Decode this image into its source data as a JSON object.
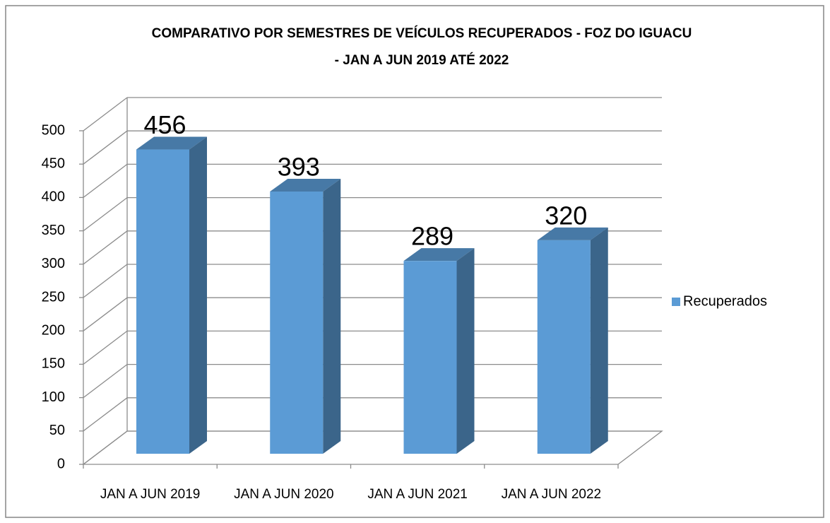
{
  "chart_data": {
    "type": "bar",
    "title": [
      "COMPARATIVO POR SEMESTRES DE VEÍCULOS RECUPERADOS - FOZ DO IGUACU",
      "- JAN A JUN 2019 ATÉ 2022"
    ],
    "categories": [
      "JAN A JUN 2019",
      "JAN A JUN 2020",
      "JAN A JUN 2021",
      "JAN A JUN 2022"
    ],
    "series": [
      {
        "name": "Recuperados",
        "color": "#5b9bd5",
        "values": [
          456,
          393,
          289,
          320
        ]
      }
    ],
    "ylim": [
      0,
      500
    ],
    "yticks": [
      0,
      50,
      100,
      150,
      200,
      250,
      300,
      350,
      400,
      450,
      500
    ],
    "grid": true,
    "legend": "right"
  }
}
